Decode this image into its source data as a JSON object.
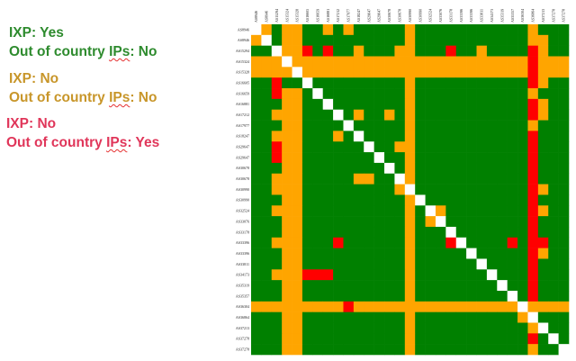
{
  "legend": [
    {
      "line1": "IXP: Yes",
      "line2_prefix": "Out of country ",
      "line2_ips": "IPs",
      "line2_suffix": ": No",
      "color": "#2e8b2e"
    },
    {
      "line1": "IXP: No",
      "line2_prefix": "Out of country ",
      "line2_ips": "IPs",
      "line2_suffix": ": No",
      "color": "#c8962a"
    },
    {
      "line1": "IXP: No",
      "line2_prefix": "Out of country ",
      "line2_ips": "IPs",
      "line2_suffix": ": Yes",
      "color": "#e0365a"
    }
  ],
  "chart_data": {
    "type": "heatmap",
    "colors": {
      "G": "#008000",
      "O": "#ffa500",
      "R": "#ff0000",
      "W": "#ffffff"
    },
    "categories_legend": {
      "G": "IXP: Yes, Out of country IPs: No",
      "O": "IXP: No, Out of country IPs: No",
      "R": "IXP: No, Out of country IPs: Yes"
    },
    "labels": [
      "AS8946",
      "AS8946",
      "AS15294",
      "AS15324",
      "AS15328",
      "AS16605",
      "AS16659",
      "AS16881",
      "AS17212",
      "AS17977",
      "AS18247",
      "AS29647",
      "AS29647",
      "AS30678",
      "AS30678",
      "AS30990",
      "AS30990",
      "AS32524",
      "AS33076",
      "AS33178",
      "AS33396",
      "AS33396",
      "AS33811",
      "AS34173",
      "AS35319",
      "AS35357",
      "AS36304",
      "AS36864",
      "AS37213",
      "AS37278",
      "AS37278"
    ],
    "rows": [
      "WOGOOGGOGOGGGGGOGGGGGGGGGGGOGGG",
      "OWGOOGGGGGGGGGGOGGGGGGGGGGGOOGG",
      "GGWOORGRGGOGGGOOGGGRGGOGGGGROGG",
      "OOOWOOOOOOOOOOOOOOOOOOOOOOOROOO",
      "OOOOWOOOOOOOOOOOOOOOOOOOOOOROOO",
      "GGRGGWGGGGGGGGGOGGGGGGGGGGGROGG",
      "GGROOGWGGGGGGGGOGGGGGGGGGGGOGGG",
      "GGGOOGGWGGGGGGGOGGGGGGGGGGGROGG",
      "GGOOOGGGWGOGGOGOGGGGGGGGGGGROGG",
      "GGGOOGGGGWGGGGGOGGGGGGGGGGGOGGG",
      "GGOOOGGGOGWGGGGOGGGGGGGGGGGRGGG",
      "GGROOGGGGGGWGGOOGGGGGGGGGGGRGGG",
      "GGROOGGGGGGGWGGOGGGGGGGGGGGRGGG",
      "GGGOOGGGGGGGGWGOGGGGGGGGGGGRGGG",
      "GGOOOGGGGGOOGGWOGGGGGGGGGGGRGGG",
      "GGOOOGGGGGGGGGOWGGGGGGGGGGGROGG",
      "GGGOOGGGGGGGGGGOWGGGGGGGGGGRGGG",
      "GGOOOGGGGGGGGGGOGWOGGGGGGGGROGG",
      "GGGOOGGGGGGGGGGOGOWGGGGGGGGRGGG",
      "GGGOOGGGGGGGGGGOGGGWGGGGGGGRGGG",
      "GGOOOGGGRGGGGGGOGGGRWGGGGRGRRGG",
      "GGGOOGGGGGGGGGGOGGGGGWGGGGGROGG",
      "GGGOOGGGGGGGGGGOGGGGGGWGGGGRGGG",
      "GGOOORRRGGGGGGGOGGGGGGGWGGGRGGG",
      "GGGOOGGGGGGGGGGOGGGGGGGGWGGRGGG",
      "GGGOOGGGGGGGGGGOGGGGGGGGGWGRGGG",
      "OOOOOOOOOROOOOOOOOOOOOOOOOWOOOO",
      "GGGOOGGGGGGGGGGOGGGGGGGGGGOWGGG",
      "GGGOOGGGGGGGGGGOGGGGGGGGGGGOWGG",
      "GGGOOGGGGGGGGGGOGGGGGGGGGGGRGWG",
      "GGGOOGGGGGGGGGGOGGGGGGGGGGGOGGW"
    ]
  }
}
